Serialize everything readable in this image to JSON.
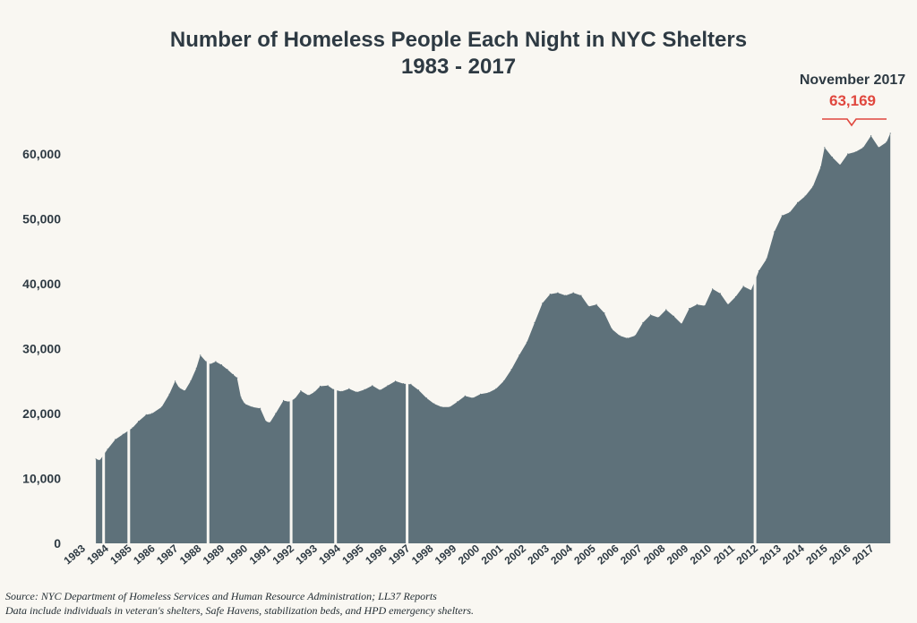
{
  "chart_data": {
    "type": "area",
    "title": "Number of Homeless People Each Night in NYC Shelters",
    "subtitle": "1983 - 2017",
    "ylim": [
      0,
      65000
    ],
    "yticks": [
      0,
      10000,
      20000,
      30000,
      40000,
      50000,
      60000
    ],
    "ytick_labels": [
      "0",
      "10,000",
      "20,000",
      "30,000",
      "40,000",
      "50,000",
      "60,000"
    ],
    "xtick_labels": [
      "1983",
      "1984",
      "1985",
      "1986",
      "1987",
      "1988",
      "1989",
      "1990",
      "1991",
      "1992",
      "1993",
      "1994",
      "1995",
      "1996",
      "1997",
      "1998",
      "1999",
      "2000",
      "2001",
      "2002",
      "2003",
      "2004",
      "2005",
      "2006",
      "2007",
      "2008",
      "2009",
      "2010",
      "2011",
      "2012",
      "2013",
      "2014",
      "2015",
      "2016",
      "2017"
    ],
    "series": [
      {
        "color": "#5e717a",
        "points": [
          {
            "x": "1983-08",
            "y": 13000
          },
          {
            "x": "1983-10",
            "y": 12800
          },
          {
            "x": "1984-02",
            "y": 14500
          },
          {
            "x": "1984-06",
            "y": 16000
          },
          {
            "x": "1984-10",
            "y": 16800
          },
          {
            "x": "1985-03",
            "y": 17800
          },
          {
            "x": "1985-06",
            "y": 18800
          },
          {
            "x": "1985-10",
            "y": 19800
          },
          {
            "x": "1986-01",
            "y": 20000
          },
          {
            "x": "1986-06",
            "y": 21000
          },
          {
            "x": "1986-10",
            "y": 23000
          },
          {
            "x": "1987-01",
            "y": 25000
          },
          {
            "x": "1987-03",
            "y": 24000
          },
          {
            "x": "1987-06",
            "y": 23500
          },
          {
            "x": "1987-09",
            "y": 25000
          },
          {
            "x": "1987-12",
            "y": 27000
          },
          {
            "x": "1988-02",
            "y": 29000
          },
          {
            "x": "1988-05",
            "y": 28000
          },
          {
            "x": "1988-07",
            "y": 27600
          },
          {
            "x": "1988-10",
            "y": 28000
          },
          {
            "x": "1989-01",
            "y": 27500
          },
          {
            "x": "1989-04",
            "y": 26800
          },
          {
            "x": "1989-07",
            "y": 26000
          },
          {
            "x": "1989-09",
            "y": 25500
          },
          {
            "x": "1989-11",
            "y": 22500
          },
          {
            "x": "1990-01",
            "y": 21500
          },
          {
            "x": "1990-05",
            "y": 21000
          },
          {
            "x": "1990-09",
            "y": 20800
          },
          {
            "x": "1990-12",
            "y": 18800
          },
          {
            "x": "1991-02",
            "y": 18600
          },
          {
            "x": "1991-05",
            "y": 20000
          },
          {
            "x": "1991-09",
            "y": 22000
          },
          {
            "x": "1991-12",
            "y": 21800
          },
          {
            "x": "1992-03",
            "y": 22300
          },
          {
            "x": "1992-06",
            "y": 23500
          },
          {
            "x": "1992-10",
            "y": 22800
          },
          {
            "x": "1993-01",
            "y": 23300
          },
          {
            "x": "1993-04",
            "y": 24200
          },
          {
            "x": "1993-08",
            "y": 24300
          },
          {
            "x": "1993-11",
            "y": 23700
          },
          {
            "x": "1994-03",
            "y": 23400
          },
          {
            "x": "1994-07",
            "y": 23800
          },
          {
            "x": "1994-11",
            "y": 23300
          },
          {
            "x": "1995-03",
            "y": 23700
          },
          {
            "x": "1995-07",
            "y": 24300
          },
          {
            "x": "1995-11",
            "y": 23600
          },
          {
            "x": "1996-03",
            "y": 24300
          },
          {
            "x": "1996-07",
            "y": 25000
          },
          {
            "x": "1996-11",
            "y": 24600
          },
          {
            "x": "1997-03",
            "y": 24500
          },
          {
            "x": "1997-07",
            "y": 23600
          },
          {
            "x": "1997-11",
            "y": 22400
          },
          {
            "x": "1998-03",
            "y": 21500
          },
          {
            "x": "1998-07",
            "y": 21000
          },
          {
            "x": "1998-11",
            "y": 21000
          },
          {
            "x": "1999-03",
            "y": 21800
          },
          {
            "x": "1999-07",
            "y": 22700
          },
          {
            "x": "1999-11",
            "y": 22400
          },
          {
            "x": "2000-03",
            "y": 23000
          },
          {
            "x": "2000-07",
            "y": 23200
          },
          {
            "x": "2000-11",
            "y": 23800
          },
          {
            "x": "2001-03",
            "y": 25000
          },
          {
            "x": "2001-07",
            "y": 26800
          },
          {
            "x": "2001-11",
            "y": 29000
          },
          {
            "x": "2002-03",
            "y": 31000
          },
          {
            "x": "2002-07",
            "y": 34000
          },
          {
            "x": "2002-11",
            "y": 37000
          },
          {
            "x": "2003-03",
            "y": 38400
          },
          {
            "x": "2003-07",
            "y": 38600
          },
          {
            "x": "2003-11",
            "y": 38200
          },
          {
            "x": "2004-03",
            "y": 38600
          },
          {
            "x": "2004-07",
            "y": 38200
          },
          {
            "x": "2004-11",
            "y": 36500
          },
          {
            "x": "2005-03",
            "y": 36800
          },
          {
            "x": "2005-07",
            "y": 35500
          },
          {
            "x": "2005-11",
            "y": 33000
          },
          {
            "x": "2006-03",
            "y": 32000
          },
          {
            "x": "2006-07",
            "y": 31600
          },
          {
            "x": "2006-11",
            "y": 32000
          },
          {
            "x": "2007-03",
            "y": 34000
          },
          {
            "x": "2007-07",
            "y": 35200
          },
          {
            "x": "2007-11",
            "y": 34800
          },
          {
            "x": "2008-03",
            "y": 36000
          },
          {
            "x": "2008-07",
            "y": 35000
          },
          {
            "x": "2008-11",
            "y": 33800
          },
          {
            "x": "2009-03",
            "y": 36200
          },
          {
            "x": "2009-07",
            "y": 36800
          },
          {
            "x": "2009-11",
            "y": 36600
          },
          {
            "x": "2010-03",
            "y": 39200
          },
          {
            "x": "2010-07",
            "y": 38500
          },
          {
            "x": "2010-11",
            "y": 36800
          },
          {
            "x": "2011-03",
            "y": 38000
          },
          {
            "x": "2011-07",
            "y": 39600
          },
          {
            "x": "2011-11",
            "y": 39000
          },
          {
            "x": "2012-03",
            "y": 42000
          },
          {
            "x": "2012-07",
            "y": 43800
          },
          {
            "x": "2012-11",
            "y": 48000
          },
          {
            "x": "2013-03",
            "y": 50500
          },
          {
            "x": "2013-07",
            "y": 51000
          },
          {
            "x": "2013-11",
            "y": 52500
          },
          {
            "x": "2014-03",
            "y": 53500
          },
          {
            "x": "2014-07",
            "y": 55000
          },
          {
            "x": "2014-11",
            "y": 58000
          },
          {
            "x": "2015-01",
            "y": 61000
          },
          {
            "x": "2015-05",
            "y": 59500
          },
          {
            "x": "2015-09",
            "y": 58300
          },
          {
            "x": "2016-01",
            "y": 60000
          },
          {
            "x": "2016-05",
            "y": 60300
          },
          {
            "x": "2016-09",
            "y": 61000
          },
          {
            "x": "2017-01",
            "y": 62800
          },
          {
            "x": "2017-05",
            "y": 61000
          },
          {
            "x": "2017-09",
            "y": 61800
          },
          {
            "x": "2017-11",
            "y": 63169
          }
        ]
      }
    ],
    "gaps": [
      "1983-12",
      "1985-01",
      "1988-06",
      "1992-01",
      "1993-12",
      "1997-01",
      "2012-01"
    ],
    "annotation": {
      "label": "November 2017",
      "value_label": "63,169",
      "x": "2017-11",
      "y": 63169,
      "color": "#e0473e"
    }
  },
  "source": "Source:  NYC Department of Homeless Services and Human Resource Administration; LL37 Reports",
  "note": "Data include individuals in veteran's shelters, Safe Havens, stabilization beds, and HPD emergency shelters."
}
